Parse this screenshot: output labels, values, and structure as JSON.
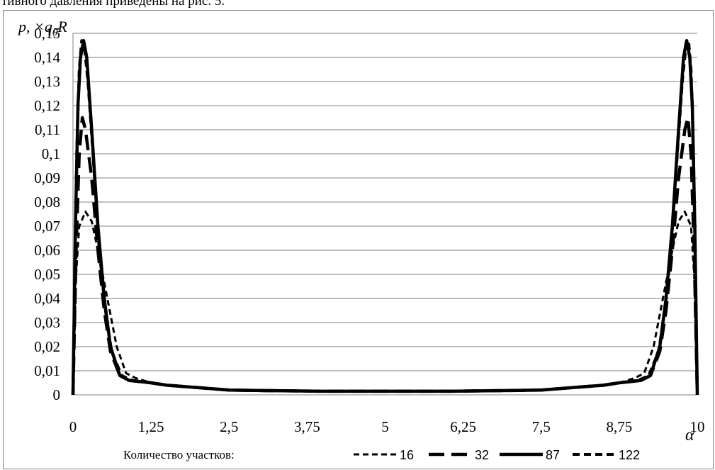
{
  "page": {
    "top_text": "тивного давления приведены на рис. 5."
  },
  "chart_data": {
    "type": "line",
    "ylabel": "p, ×q0R",
    "xlabel": "α",
    "xlim": [
      0,
      10
    ],
    "ylim": [
      0,
      0.15
    ],
    "x_ticks": [
      {
        "value": 0,
        "label": "0"
      },
      {
        "value": 1.25,
        "label": "1,25"
      },
      {
        "value": 2.5,
        "label": "2,5"
      },
      {
        "value": 3.75,
        "label": "3,75"
      },
      {
        "value": 5,
        "label": "5"
      },
      {
        "value": 6.25,
        "label": "6,25"
      },
      {
        "value": 7.5,
        "label": "7,5"
      },
      {
        "value": 8.75,
        "label": "8,75"
      },
      {
        "value": 10,
        "label": "10"
      }
    ],
    "y_ticks": [
      {
        "value": 0,
        "label": "0"
      },
      {
        "value": 0.01,
        "label": "0,01"
      },
      {
        "value": 0.02,
        "label": "0,02"
      },
      {
        "value": 0.03,
        "label": "0,03"
      },
      {
        "value": 0.04,
        "label": "0,04"
      },
      {
        "value": 0.05,
        "label": "0,05"
      },
      {
        "value": 0.06,
        "label": "0,06"
      },
      {
        "value": 0.07,
        "label": "0,07"
      },
      {
        "value": 0.08,
        "label": "0,08"
      },
      {
        "value": 0.09,
        "label": "0,09"
      },
      {
        "value": 0.1,
        "label": "0,1"
      },
      {
        "value": 0.11,
        "label": "0,11"
      },
      {
        "value": 0.12,
        "label": "0,12"
      },
      {
        "value": 0.13,
        "label": "0,13"
      },
      {
        "value": 0.14,
        "label": "0,14"
      },
      {
        "value": 0.15,
        "label": "0,15"
      }
    ],
    "grid": "horizontal",
    "legend": {
      "title": "Количество участков:",
      "position": "bottom"
    },
    "series": [
      {
        "name": "16",
        "style": "dashed-thin",
        "x": [
          0,
          0.05,
          0.1,
          0.2,
          0.3,
          0.4,
          0.55,
          0.7,
          0.85,
          1.0,
          1.25,
          1.5,
          2.0,
          2.5,
          3.0,
          4.0,
          5.0,
          6.0,
          7.0,
          7.5,
          8.0,
          8.5,
          8.75,
          9.0,
          9.15,
          9.3,
          9.45,
          9.6,
          9.7,
          9.8,
          9.9,
          9.95,
          10
        ],
        "y": [
          0,
          0.05,
          0.07,
          0.076,
          0.072,
          0.06,
          0.04,
          0.02,
          0.009,
          0.007,
          0.005,
          0.004,
          0.003,
          0.002,
          0.0018,
          0.0015,
          0.0015,
          0.0015,
          0.0018,
          0.002,
          0.003,
          0.004,
          0.005,
          0.007,
          0.009,
          0.02,
          0.04,
          0.06,
          0.072,
          0.076,
          0.07,
          0.05,
          0
        ]
      },
      {
        "name": "32",
        "style": "dashed-long",
        "x": [
          0,
          0.05,
          0.1,
          0.15,
          0.2,
          0.3,
          0.4,
          0.5,
          0.6,
          0.75,
          0.9,
          1.25,
          1.5,
          2.0,
          2.5,
          3.0,
          4.0,
          5.0,
          6.0,
          7.0,
          7.5,
          8.0,
          8.5,
          8.75,
          9.1,
          9.25,
          9.4,
          9.5,
          9.6,
          9.7,
          9.8,
          9.85,
          9.9,
          9.95,
          10
        ],
        "y": [
          0,
          0.06,
          0.1,
          0.115,
          0.11,
          0.09,
          0.06,
          0.035,
          0.018,
          0.008,
          0.006,
          0.005,
          0.004,
          0.003,
          0.002,
          0.0018,
          0.0015,
          0.0015,
          0.0015,
          0.0018,
          0.002,
          0.003,
          0.004,
          0.005,
          0.006,
          0.008,
          0.018,
          0.035,
          0.06,
          0.09,
          0.11,
          0.115,
          0.1,
          0.06,
          0
        ]
      },
      {
        "name": "87",
        "style": "solid",
        "x": [
          0,
          0.04,
          0.08,
          0.12,
          0.17,
          0.22,
          0.3,
          0.4,
          0.5,
          0.6,
          0.75,
          0.9,
          1.25,
          1.5,
          2.0,
          2.5,
          3.0,
          4.0,
          5.0,
          6.0,
          7.0,
          7.5,
          8.0,
          8.5,
          8.75,
          9.1,
          9.25,
          9.4,
          9.5,
          9.6,
          9.7,
          9.78,
          9.83,
          9.88,
          9.92,
          9.96,
          10
        ],
        "y": [
          0,
          0.07,
          0.12,
          0.14,
          0.147,
          0.14,
          0.11,
          0.07,
          0.04,
          0.02,
          0.008,
          0.006,
          0.005,
          0.004,
          0.003,
          0.002,
          0.0018,
          0.0015,
          0.0015,
          0.0015,
          0.0018,
          0.002,
          0.003,
          0.004,
          0.005,
          0.006,
          0.008,
          0.02,
          0.04,
          0.07,
          0.11,
          0.14,
          0.147,
          0.14,
          0.12,
          0.07,
          0
        ]
      },
      {
        "name": "122",
        "style": "dashed-thick",
        "x": [
          0,
          0.03,
          0.06,
          0.1,
          0.14,
          0.18,
          0.24,
          0.32,
          0.42,
          0.52,
          0.62,
          0.78,
          0.95,
          1.25,
          1.5,
          2.0,
          2.5,
          3.0,
          4.0,
          5.0,
          6.0,
          7.0,
          7.5,
          8.0,
          8.5,
          8.75,
          9.05,
          9.22,
          9.38,
          9.48,
          9.58,
          9.68,
          9.76,
          9.82,
          9.86,
          9.9,
          9.94,
          9.97,
          10
        ],
        "y": [
          0,
          0.05,
          0.1,
          0.135,
          0.147,
          0.145,
          0.13,
          0.1,
          0.06,
          0.035,
          0.018,
          0.008,
          0.006,
          0.005,
          0.004,
          0.003,
          0.002,
          0.0018,
          0.0015,
          0.0015,
          0.0015,
          0.0018,
          0.002,
          0.003,
          0.004,
          0.005,
          0.006,
          0.008,
          0.018,
          0.035,
          0.06,
          0.1,
          0.13,
          0.145,
          0.147,
          0.135,
          0.1,
          0.05,
          0
        ]
      }
    ]
  }
}
